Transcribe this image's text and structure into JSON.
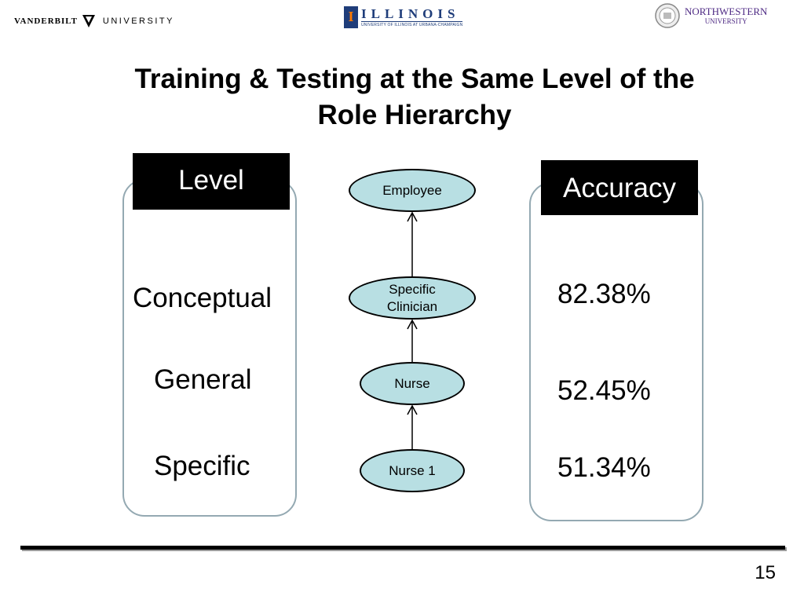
{
  "logos": {
    "vanderbilt": {
      "name": "VANDERBILT",
      "suffix": "UNIVERSITY"
    },
    "illinois": {
      "title": "ILLINOIS",
      "subtitle": "UNIVERSITY OF ILLINOIS AT URBANA-CHAMPAIGN"
    },
    "northwestern": {
      "title": "NORTHWESTERN",
      "subtitle": "UNIVERSITY"
    }
  },
  "slide": {
    "title_line1": "Training & Testing at the Same Level of the",
    "title_line2": "Role Hierarchy",
    "page_number": "15"
  },
  "level_column": {
    "header": "Level",
    "items": [
      "Conceptual",
      "General",
      "Specific"
    ]
  },
  "accuracy_column": {
    "header": "Accuracy",
    "items": [
      "82.38%",
      "52.45%",
      "51.34%"
    ]
  },
  "hierarchy": {
    "nodes": [
      {
        "label": "Employee"
      },
      {
        "label_line1": "Specific",
        "label_line2": "Clinician"
      },
      {
        "label": "Nurse"
      },
      {
        "label": "Nurse 1"
      }
    ]
  },
  "colors": {
    "node_fill": "#b8dfe3",
    "box_border": "#94a9b2",
    "header_bg": "#000000"
  }
}
